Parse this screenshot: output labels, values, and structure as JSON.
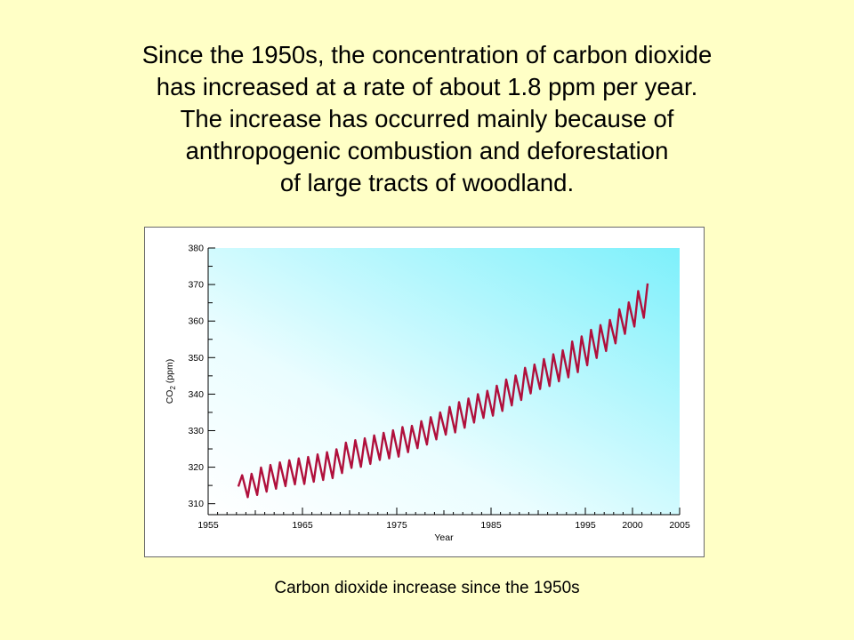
{
  "slide": {
    "lines": [
      "Since the 1950s, the concentration of carbon dioxide",
      "has increased at a rate of about 1.8 ppm per year.",
      "The increase has occurred mainly because of",
      "anthropogenic combustion and deforestation",
      "of large tracts of woodland."
    ],
    "caption": "Carbon dioxide increase since the 1950s"
  },
  "chart_data": {
    "type": "line",
    "title": "",
    "xlabel": "Year",
    "ylabel": "CO₂ (ppm)",
    "xlim": [
      1955,
      2005
    ],
    "ylim": [
      307,
      380
    ],
    "xticks": [
      1955,
      1965,
      1975,
      1985,
      1995,
      2000,
      2005
    ],
    "yticks": [
      310,
      320,
      330,
      340,
      350,
      360,
      370,
      380
    ],
    "grid": false,
    "background": "light-cyan gradient",
    "series": [
      {
        "color": "#b0103c",
        "x": [
          1958.2,
          1958.6,
          1959.2,
          1959.6,
          1960.2,
          1960.6,
          1961.2,
          1961.6,
          1962.2,
          1962.6,
          1963.2,
          1963.6,
          1964.2,
          1964.6,
          1965.2,
          1965.6,
          1966.2,
          1966.6,
          1967.2,
          1967.6,
          1968.2,
          1968.6,
          1969.2,
          1969.6,
          1970.2,
          1970.6,
          1971.2,
          1971.6,
          1972.2,
          1972.6,
          1973.2,
          1973.6,
          1974.2,
          1974.6,
          1975.2,
          1975.6,
          1976.2,
          1976.6,
          1977.2,
          1977.6,
          1978.2,
          1978.6,
          1979.2,
          1979.6,
          1980.2,
          1980.6,
          1981.2,
          1981.6,
          1982.2,
          1982.6,
          1983.2,
          1983.6,
          1984.2,
          1984.6,
          1985.2,
          1985.6,
          1986.2,
          1986.6,
          1987.2,
          1987.6,
          1988.2,
          1988.6,
          1989.2,
          1989.6,
          1990.2,
          1990.6,
          1991.2,
          1991.6,
          1992.2,
          1992.6,
          1993.2,
          1993.6,
          1994.2,
          1994.6,
          1995.2,
          1995.6,
          1996.2,
          1996.6,
          1997.2,
          1997.6,
          1998.2,
          1998.6,
          1999.2,
          1999.6,
          2000.2,
          2000.6,
          2001.2,
          2001.6
        ],
        "y": [
          314.7,
          317.8,
          311.8,
          318.2,
          312.4,
          319.9,
          313.3,
          320.6,
          314.1,
          321.3,
          314.8,
          321.9,
          315.3,
          322.4,
          315.4,
          322.8,
          316.0,
          323.5,
          316.5,
          324.1,
          317.0,
          324.9,
          318.4,
          326.7,
          319.8,
          327.4,
          320.1,
          327.9,
          320.9,
          328.7,
          322.0,
          329.4,
          322.4,
          330.1,
          322.9,
          331.0,
          324.1,
          331.3,
          325.2,
          332.6,
          326.2,
          333.7,
          327.6,
          335.0,
          328.9,
          336.5,
          329.5,
          337.8,
          330.8,
          338.8,
          332.2,
          340.0,
          333.5,
          340.9,
          334.1,
          342.3,
          335.4,
          344.0,
          336.9,
          345.1,
          338.4,
          347.2,
          340.2,
          348.1,
          341.4,
          349.6,
          342.2,
          350.9,
          343.5,
          352.0,
          344.6,
          354.4,
          346.0,
          355.8,
          347.9,
          357.6,
          349.9,
          358.9,
          351.8,
          360.3,
          353.9,
          363.2,
          356.5,
          365.1,
          358.5,
          368.2,
          360.9,
          370.3
        ]
      }
    ]
  }
}
